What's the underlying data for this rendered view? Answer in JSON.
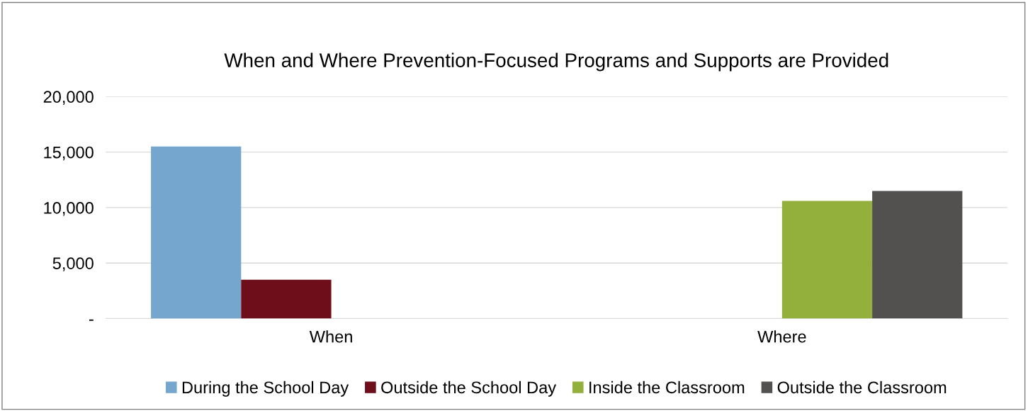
{
  "chart_data": {
    "type": "bar",
    "title": "When and Where Prevention-Focused Programs and Supports are Provided",
    "categories": [
      "When",
      "Where"
    ],
    "series": [
      {
        "name": "During the School Day",
        "color": "#75a6cd",
        "values": [
          15500,
          null
        ]
      },
      {
        "name": "Outside the School Day",
        "color": "#6d0e1a",
        "values": [
          3500,
          null
        ]
      },
      {
        "name": "Inside the Classroom",
        "color": "#93b03c",
        "values": [
          null,
          10600
        ]
      },
      {
        "name": "Outside the Classroom",
        "color": "#52514f",
        "values": [
          null,
          11500
        ]
      }
    ],
    "ylim": [
      0,
      20000
    ],
    "yticks": [
      {
        "value": 0,
        "label": "-"
      },
      {
        "value": 5000,
        "label": "5,000"
      },
      {
        "value": 10000,
        "label": "10,000"
      },
      {
        "value": 15000,
        "label": "15,000"
      },
      {
        "value": 20000,
        "label": "20,000"
      }
    ],
    "grid": "y",
    "legend": "bottom"
  }
}
